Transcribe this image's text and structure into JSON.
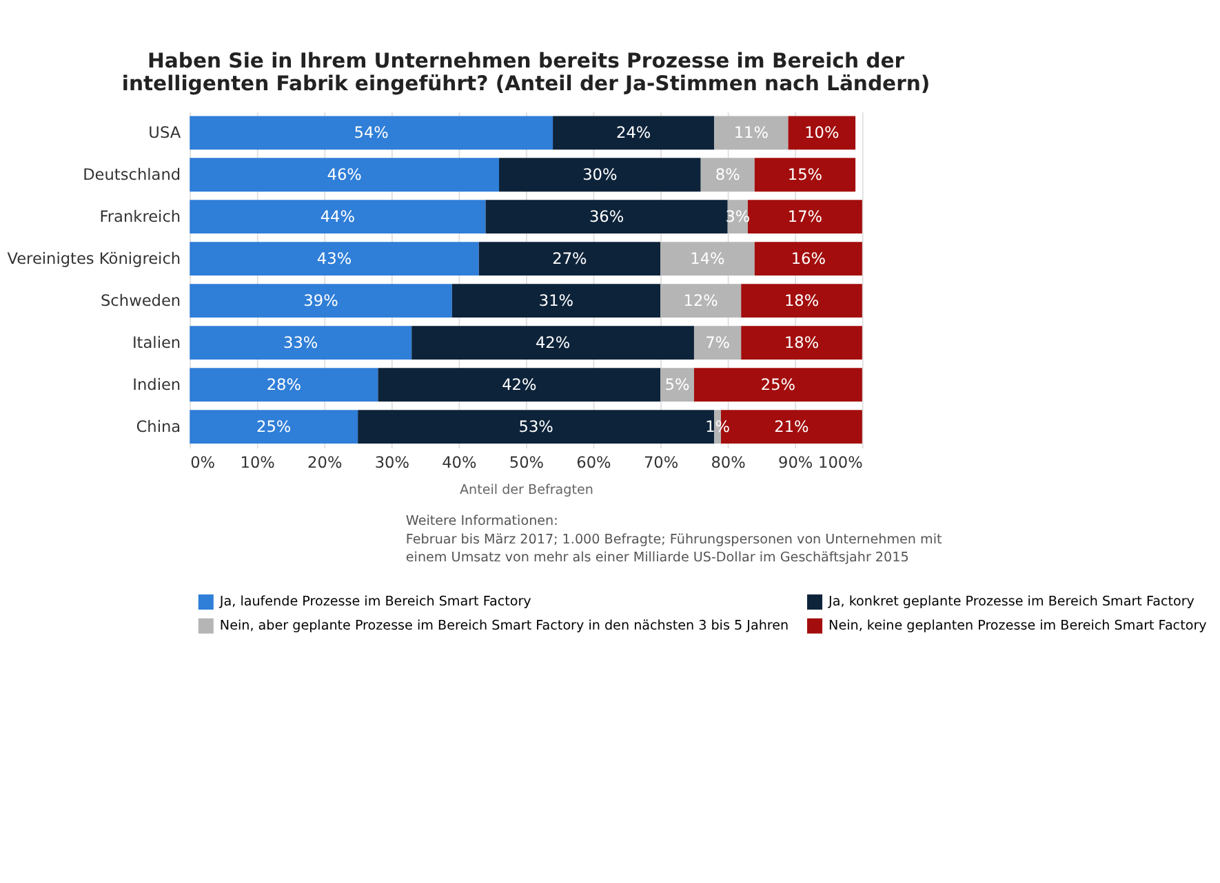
{
  "chart_data": {
    "type": "bar",
    "orientation": "horizontal",
    "stacked": true,
    "title": "Haben Sie in Ihrem Unternehmen bereits Prozesse im Bereich der intelligenten Fabrik eingeführt? (Anteil der Ja-Stimmen nach Ländern)",
    "xlabel": "Anteil der Befragten",
    "categories": [
      "USA",
      "Deutschland",
      "Frankreich",
      "Vereinigtes Königreich",
      "Schweden",
      "Italien",
      "Indien",
      "China"
    ],
    "series": [
      {
        "name": "Ja, laufende Prozesse im Bereich Smart Factory",
        "color": "#2f7ed8",
        "values": [
          54,
          46,
          44,
          43,
          39,
          33,
          28,
          25
        ],
        "value_labels": [
          "54%",
          "46%",
          "44%",
          "43%",
          "39%",
          "33%",
          "28%",
          "25%"
        ]
      },
      {
        "name": "Ja, konkret geplante Prozesse im Bereich Smart Factory",
        "color": "#0d233a",
        "values": [
          24,
          30,
          36,
          27,
          31,
          42,
          42,
          53
        ],
        "value_labels": [
          "24%",
          "30%",
          "36%",
          "27%",
          "31%",
          "42%",
          "42%",
          "53%"
        ]
      },
      {
        "name": "Nein, aber geplante Prozesse im Bereich Smart Factory in den nächsten 3 bis 5 Jahren",
        "color": "#b5b5b5",
        "values": [
          11,
          8,
          3,
          14,
          12,
          7,
          5,
          1
        ],
        "value_labels": [
          "11%",
          "8%",
          "3%",
          "14%",
          "12%",
          "7%",
          "5%",
          "1%"
        ]
      },
      {
        "name": "Nein, keine geplanten Prozesse im Bereich Smart Factory",
        "color": "#a30d0d",
        "values": [
          10,
          15,
          17,
          16,
          18,
          18,
          25,
          21
        ],
        "value_labels": [
          "10%",
          "15%",
          "17%",
          "16%",
          "18%",
          "18%",
          "25%",
          "21%"
        ]
      }
    ],
    "xlim": [
      0,
      100
    ],
    "xticks": [
      {
        "value": 0,
        "label": "0%"
      },
      {
        "value": 10,
        "label": "10%"
      },
      {
        "value": 20,
        "label": "20%"
      },
      {
        "value": 30,
        "label": "30%"
      },
      {
        "value": 40,
        "label": "40%"
      },
      {
        "value": 50,
        "label": "50%"
      },
      {
        "value": 60,
        "label": "60%"
      },
      {
        "value": 70,
        "label": "70%"
      },
      {
        "value": 80,
        "label": "80%"
      },
      {
        "value": 90,
        "label": "90%"
      },
      {
        "value": 100,
        "label": "100%"
      }
    ],
    "grid": "x",
    "legend": "bottom",
    "annotations": [
      "Weitere Informationen:",
      "Februar bis März 2017; 1.000 Befragte; Führungspersonen von Unternehmen mit einem Umsatz von mehr als einer Milliarde US-Dollar im Geschäftsjahr 2015"
    ]
  }
}
